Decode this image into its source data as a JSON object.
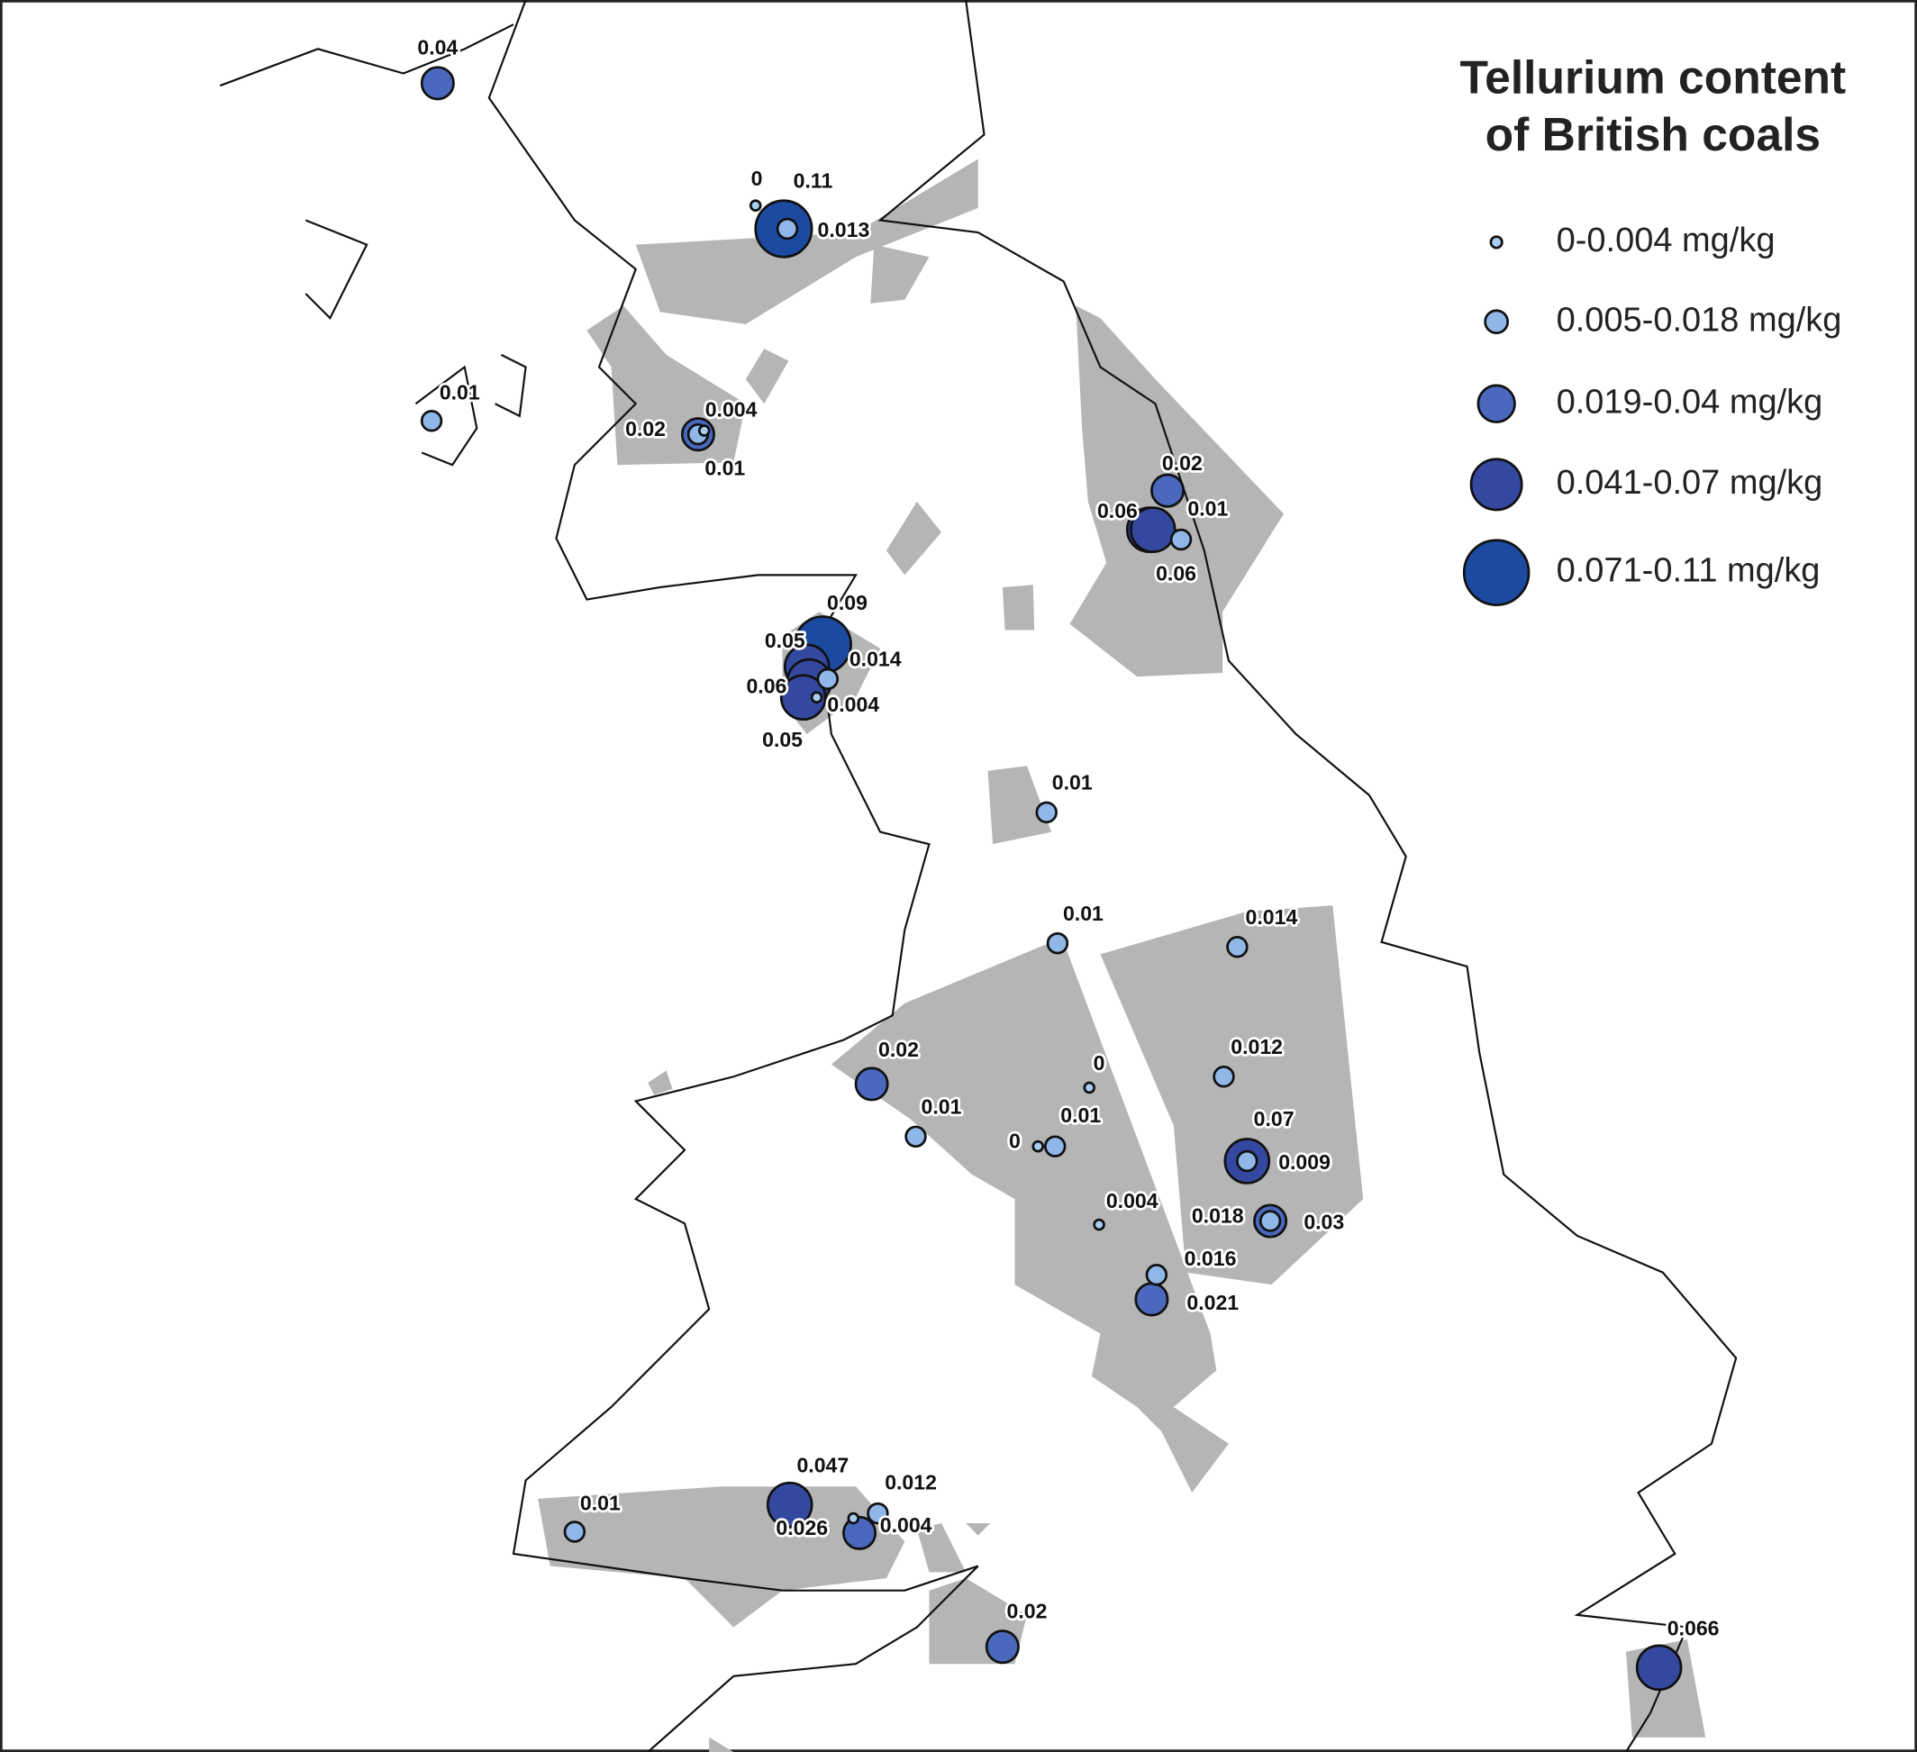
{
  "title": [
    "Tellurium content",
    "of British coals"
  ],
  "legend": [
    {
      "label": "0-0.004 mg/kg",
      "color": "#a9cdf0"
    },
    {
      "label": "0.005-0.018 mg/kg",
      "color": "#8fb8e8"
    },
    {
      "label": "0.019-0.04 mg/kg",
      "color": "#4a68bd"
    },
    {
      "label": "0.041-0.07 mg/kg",
      "color": "#35489f"
    },
    {
      "label": "0.071-0.11 mg/kg",
      "color": "#1b4aa0"
    }
  ],
  "points": [
    "0.04",
    "0",
    "0.11",
    "0.013",
    "0.01",
    "0.02",
    "0.01",
    "0.004",
    "0.02",
    "0.06",
    "0.01",
    "0.06",
    "0.09",
    "0.05",
    "0.014",
    "0.06",
    "0.004",
    "0.05",
    "0.01",
    "0.01",
    "0.014",
    "0.02",
    "0",
    "0.012",
    "0.01",
    "0.01",
    "0",
    "0.07",
    "0.009",
    "0.004",
    "0.018",
    "0.03",
    "0.016",
    "0.021",
    "0.01",
    "0.047",
    "0.012",
    "0.026",
    "0.004",
    "0.02",
    "0.066"
  ]
}
